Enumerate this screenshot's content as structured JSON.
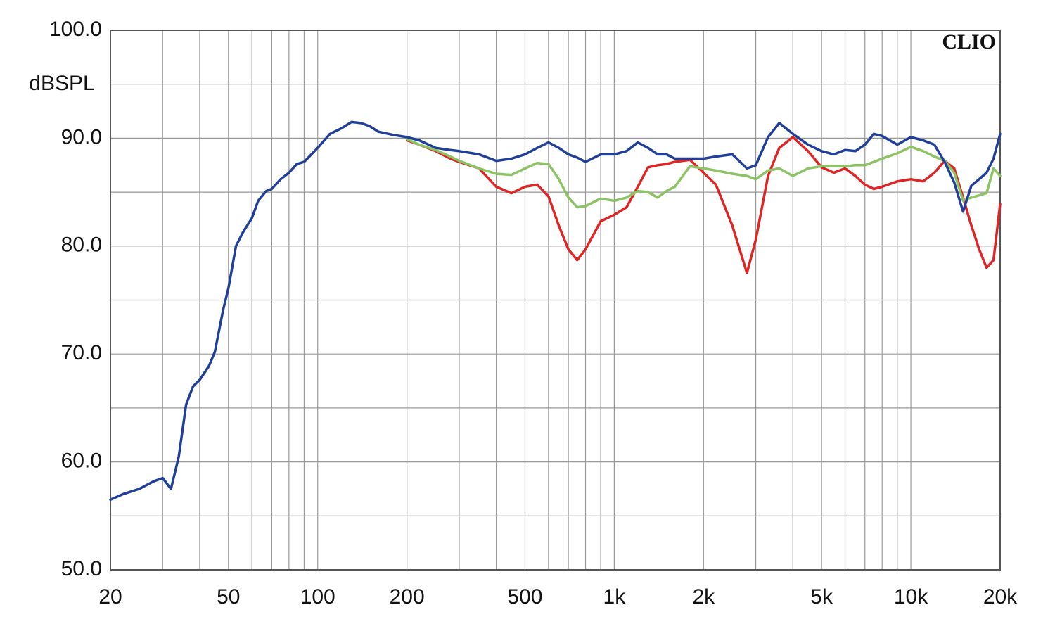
{
  "chart_data": {
    "type": "line",
    "y_label": "dBSPL",
    "annotation": "CLIO",
    "log_x": true,
    "grid": true,
    "xlim": [
      20,
      20000
    ],
    "ylim": [
      50,
      100
    ],
    "xticks": [
      20,
      50,
      100,
      200,
      500,
      {
        "value": 1000,
        "label": "1k"
      },
      {
        "value": 2000,
        "label": "2k"
      },
      {
        "value": 5000,
        "label": "5k"
      },
      {
        "value": 10000,
        "label": "10k"
      },
      {
        "value": 20000,
        "label": "20k"
      }
    ],
    "xgrid_minor": [
      30,
      40,
      60,
      70,
      80,
      90,
      300,
      400,
      600,
      700,
      800,
      900,
      3000,
      4000,
      6000,
      7000,
      8000,
      9000
    ],
    "yticks": [
      {
        "value": 50,
        "label": "50.0"
      },
      {
        "value": 60,
        "label": "60.0"
      },
      {
        "value": 70,
        "label": "70.0"
      },
      {
        "value": 80,
        "label": "80.0"
      },
      {
        "value": 90,
        "label": "90.0"
      },
      {
        "value": 100,
        "label": "100.0"
      }
    ],
    "ygrid_minor": [
      55,
      65,
      75,
      85,
      95
    ],
    "x": [
      20,
      22,
      25,
      28,
      30,
      32,
      34,
      36,
      38,
      40,
      43,
      45,
      48,
      50,
      53,
      56,
      60,
      63,
      67,
      70,
      75,
      80,
      85,
      90,
      100,
      110,
      120,
      130,
      140,
      150,
      160,
      180,
      200,
      220,
      250,
      280,
      300,
      350,
      400,
      450,
      500,
      550,
      600,
      650,
      700,
      750,
      800,
      900,
      1000,
      1100,
      1200,
      1300,
      1400,
      1500,
      1600,
      1800,
      2000,
      2200,
      2500,
      2800,
      3000,
      3300,
      3600,
      4000,
      4500,
      5000,
      5500,
      6000,
      6500,
      7000,
      7500,
      8000,
      9000,
      10000,
      11000,
      12000,
      13000,
      14000,
      15000,
      16000,
      17000,
      18000,
      19000,
      20000
    ],
    "series": [
      {
        "color": "#1f3f99",
        "values": [
          56.5,
          57.0,
          57.5,
          58.2,
          58.5,
          57.5,
          60.5,
          65.3,
          67.0,
          67.6,
          68.9,
          70.2,
          74.1,
          76.1,
          80.0,
          81.3,
          82.6,
          84.2,
          85.1,
          85.3,
          86.2,
          86.8,
          87.6,
          87.8,
          89.1,
          90.4,
          90.9,
          91.5,
          91.4,
          91.1,
          90.6,
          90.3,
          90.1,
          89.8,
          89.1,
          88.9,
          88.8,
          88.5,
          87.9,
          88.1,
          88.5,
          89.1,
          89.6,
          89.1,
          88.5,
          88.2,
          87.8,
          88.5,
          88.5,
          88.8,
          89.6,
          89.1,
          88.5,
          88.5,
          88.1,
          88.1,
          88.1,
          88.3,
          88.5,
          87.2,
          87.5,
          90.1,
          91.4,
          90.4,
          89.4,
          88.8,
          88.5,
          88.9,
          88.8,
          89.4,
          90.4,
          90.2,
          89.4,
          90.1,
          89.8,
          89.4,
          87.8,
          85.9,
          83.2,
          85.6,
          86.2,
          86.8,
          88.1,
          90.4
        ]
      },
      {
        "color": "#8cc465",
        "values": [
          null,
          null,
          null,
          null,
          null,
          null,
          null,
          null,
          null,
          null,
          null,
          null,
          null,
          null,
          null,
          null,
          null,
          null,
          null,
          null,
          null,
          null,
          null,
          null,
          null,
          null,
          null,
          null,
          null,
          null,
          null,
          null,
          89.9,
          89.4,
          88.9,
          88.3,
          87.9,
          87.2,
          86.7,
          86.6,
          87.2,
          87.7,
          87.6,
          86.2,
          84.5,
          83.6,
          83.7,
          84.4,
          84.2,
          84.5,
          85.1,
          85.0,
          84.5,
          85.1,
          85.5,
          87.4,
          87.2,
          87.0,
          86.7,
          86.5,
          86.2,
          87.0,
          87.2,
          86.5,
          87.2,
          87.4,
          87.4,
          87.4,
          87.5,
          87.5,
          87.8,
          88.1,
          88.6,
          89.2,
          88.8,
          88.3,
          87.9,
          86.8,
          84.2,
          84.5,
          84.7,
          84.9,
          87.2,
          86.5
        ]
      },
      {
        "color": "#e02424",
        "values": [
          null,
          null,
          null,
          null,
          null,
          null,
          null,
          null,
          null,
          null,
          null,
          null,
          null,
          null,
          null,
          null,
          null,
          null,
          null,
          null,
          null,
          null,
          null,
          null,
          null,
          null,
          null,
          null,
          null,
          null,
          null,
          null,
          89.8,
          89.4,
          88.8,
          88.1,
          87.8,
          87.2,
          85.5,
          84.9,
          85.5,
          85.7,
          84.6,
          81.9,
          79.7,
          78.7,
          79.7,
          82.3,
          82.9,
          83.6,
          85.5,
          87.3,
          87.5,
          87.6,
          87.8,
          88.0,
          86.8,
          85.7,
          81.9,
          77.5,
          80.6,
          86.5,
          89.1,
          90.1,
          88.8,
          87.3,
          86.8,
          87.2,
          86.5,
          85.7,
          85.3,
          85.5,
          86.0,
          86.2,
          86.0,
          86.8,
          87.9,
          87.2,
          84.5,
          81.9,
          79.7,
          78.0,
          78.7,
          83.9
        ]
      }
    ]
  }
}
